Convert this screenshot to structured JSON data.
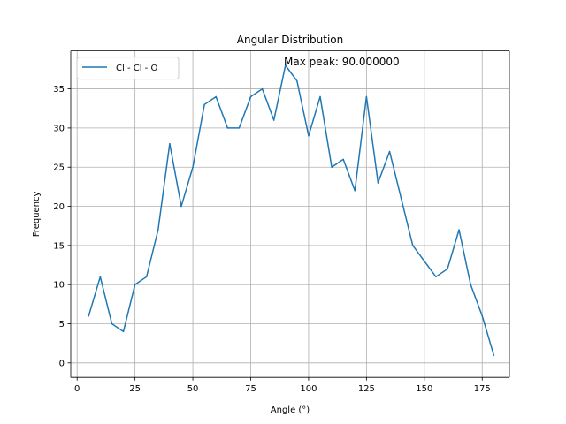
{
  "chart_data": {
    "type": "line",
    "title": "Angular Distribution",
    "xlabel": "Angle (°)",
    "ylabel": "Frequency",
    "xlim": [
      -2.75,
      186.75
    ],
    "ylim": [
      -1.85,
      39.85
    ],
    "xticks": [
      0,
      25,
      50,
      75,
      100,
      125,
      150,
      175
    ],
    "yticks": [
      0,
      5,
      10,
      15,
      20,
      25,
      30,
      35
    ],
    "grid": true,
    "legend_position": "top-left",
    "annotation": "Max peak: 90.000000",
    "series": [
      {
        "name": "Cl - Cl - O",
        "color": "#1f77b4",
        "x": [
          5,
          10,
          15,
          20,
          25,
          30,
          35,
          40,
          45,
          50,
          55,
          60,
          65,
          70,
          75,
          80,
          85,
          90,
          95,
          100,
          105,
          110,
          115,
          120,
          125,
          130,
          135,
          140,
          145,
          150,
          155,
          160,
          165,
          170,
          175,
          180
        ],
        "y": [
          6,
          11,
          5,
          4,
          10,
          11,
          17,
          28,
          20,
          25,
          33,
          34,
          30,
          30,
          34,
          35,
          31,
          38,
          36,
          29,
          34,
          25,
          26,
          22,
          34,
          23,
          27,
          21,
          15,
          13,
          11,
          12,
          17,
          10,
          6,
          1
        ]
      }
    ]
  }
}
